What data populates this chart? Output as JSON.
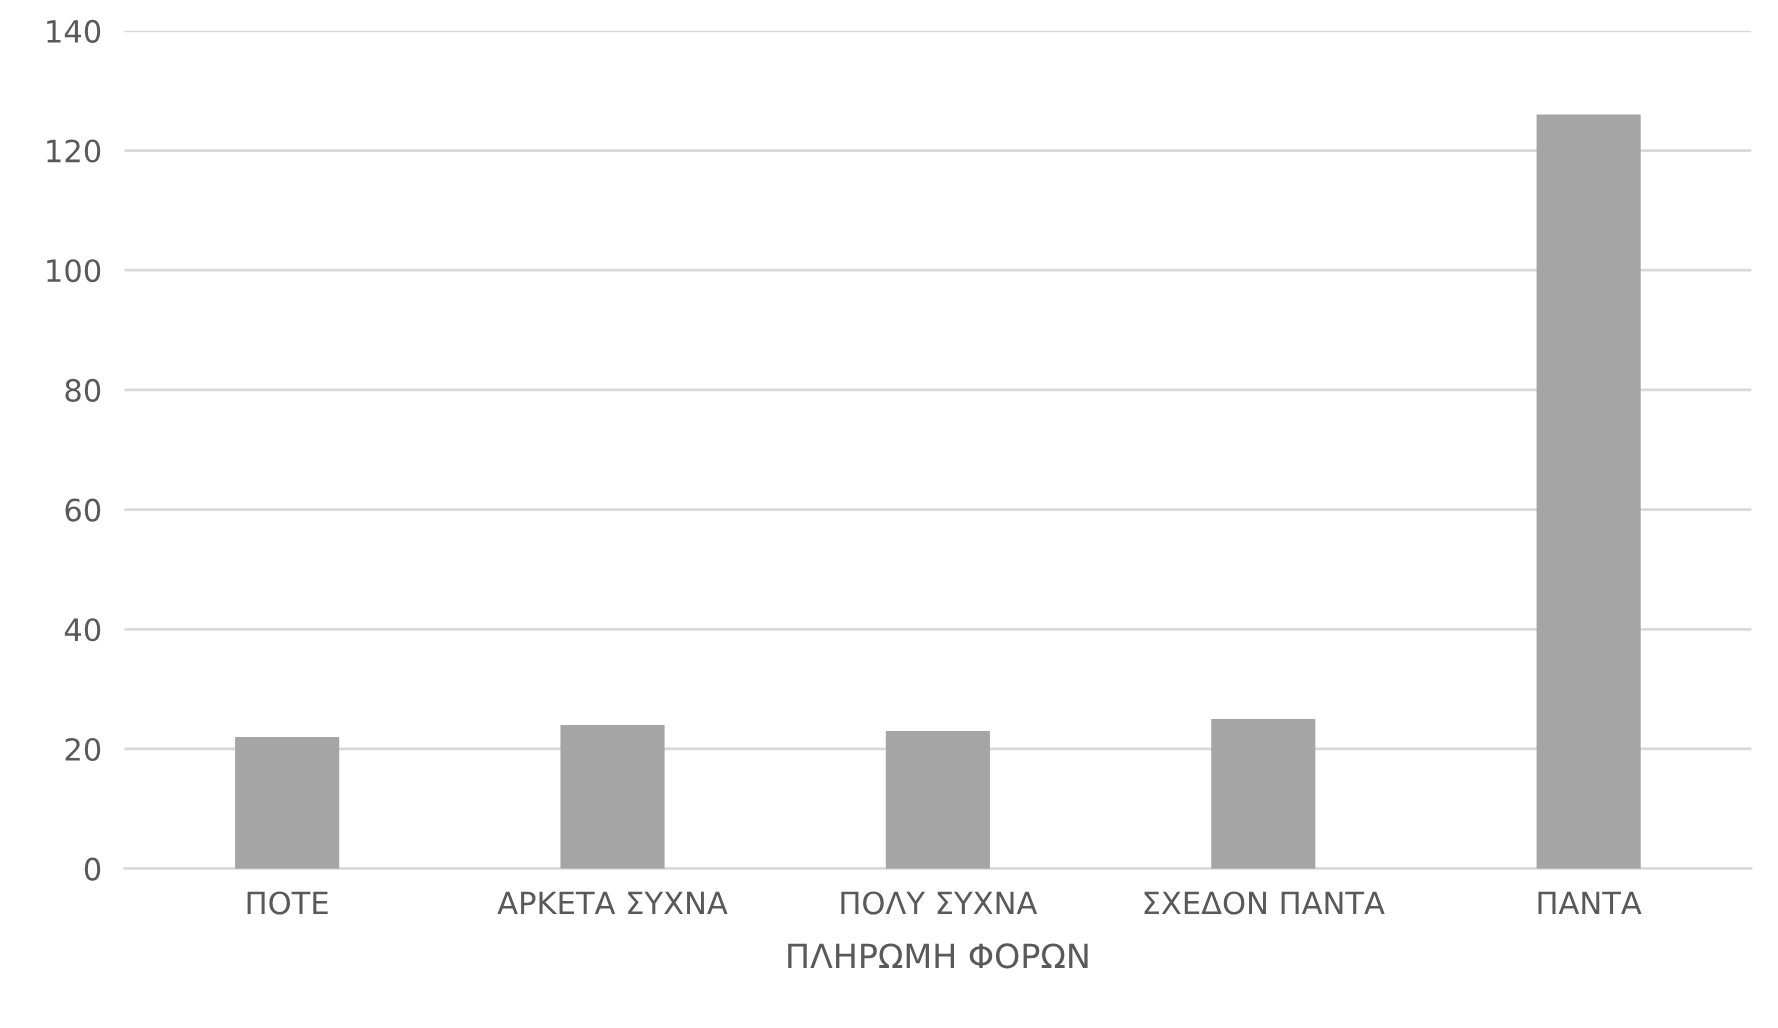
{
  "chart_data": {
    "type": "bar",
    "xlabel": "ΠΛΗΡΩΜΗ ΦΟΡΩΝ",
    "categories": [
      "ΠΟΤΕ",
      "ΑΡΚΕΤΑ ΣΥΧΝΑ",
      "ΠΟΛΥ ΣΥΧΝΑ",
      "ΣΧΕΔΟΝ ΠΑΝΤΑ",
      "ΠΑΝΤΑ"
    ],
    "values": [
      22,
      24,
      23,
      25,
      126
    ],
    "color": "#a5a5a5",
    "ylim": [
      0,
      140
    ],
    "yticks": [
      0,
      20,
      40,
      60,
      80,
      100,
      120,
      140
    ],
    "grid": "y"
  }
}
